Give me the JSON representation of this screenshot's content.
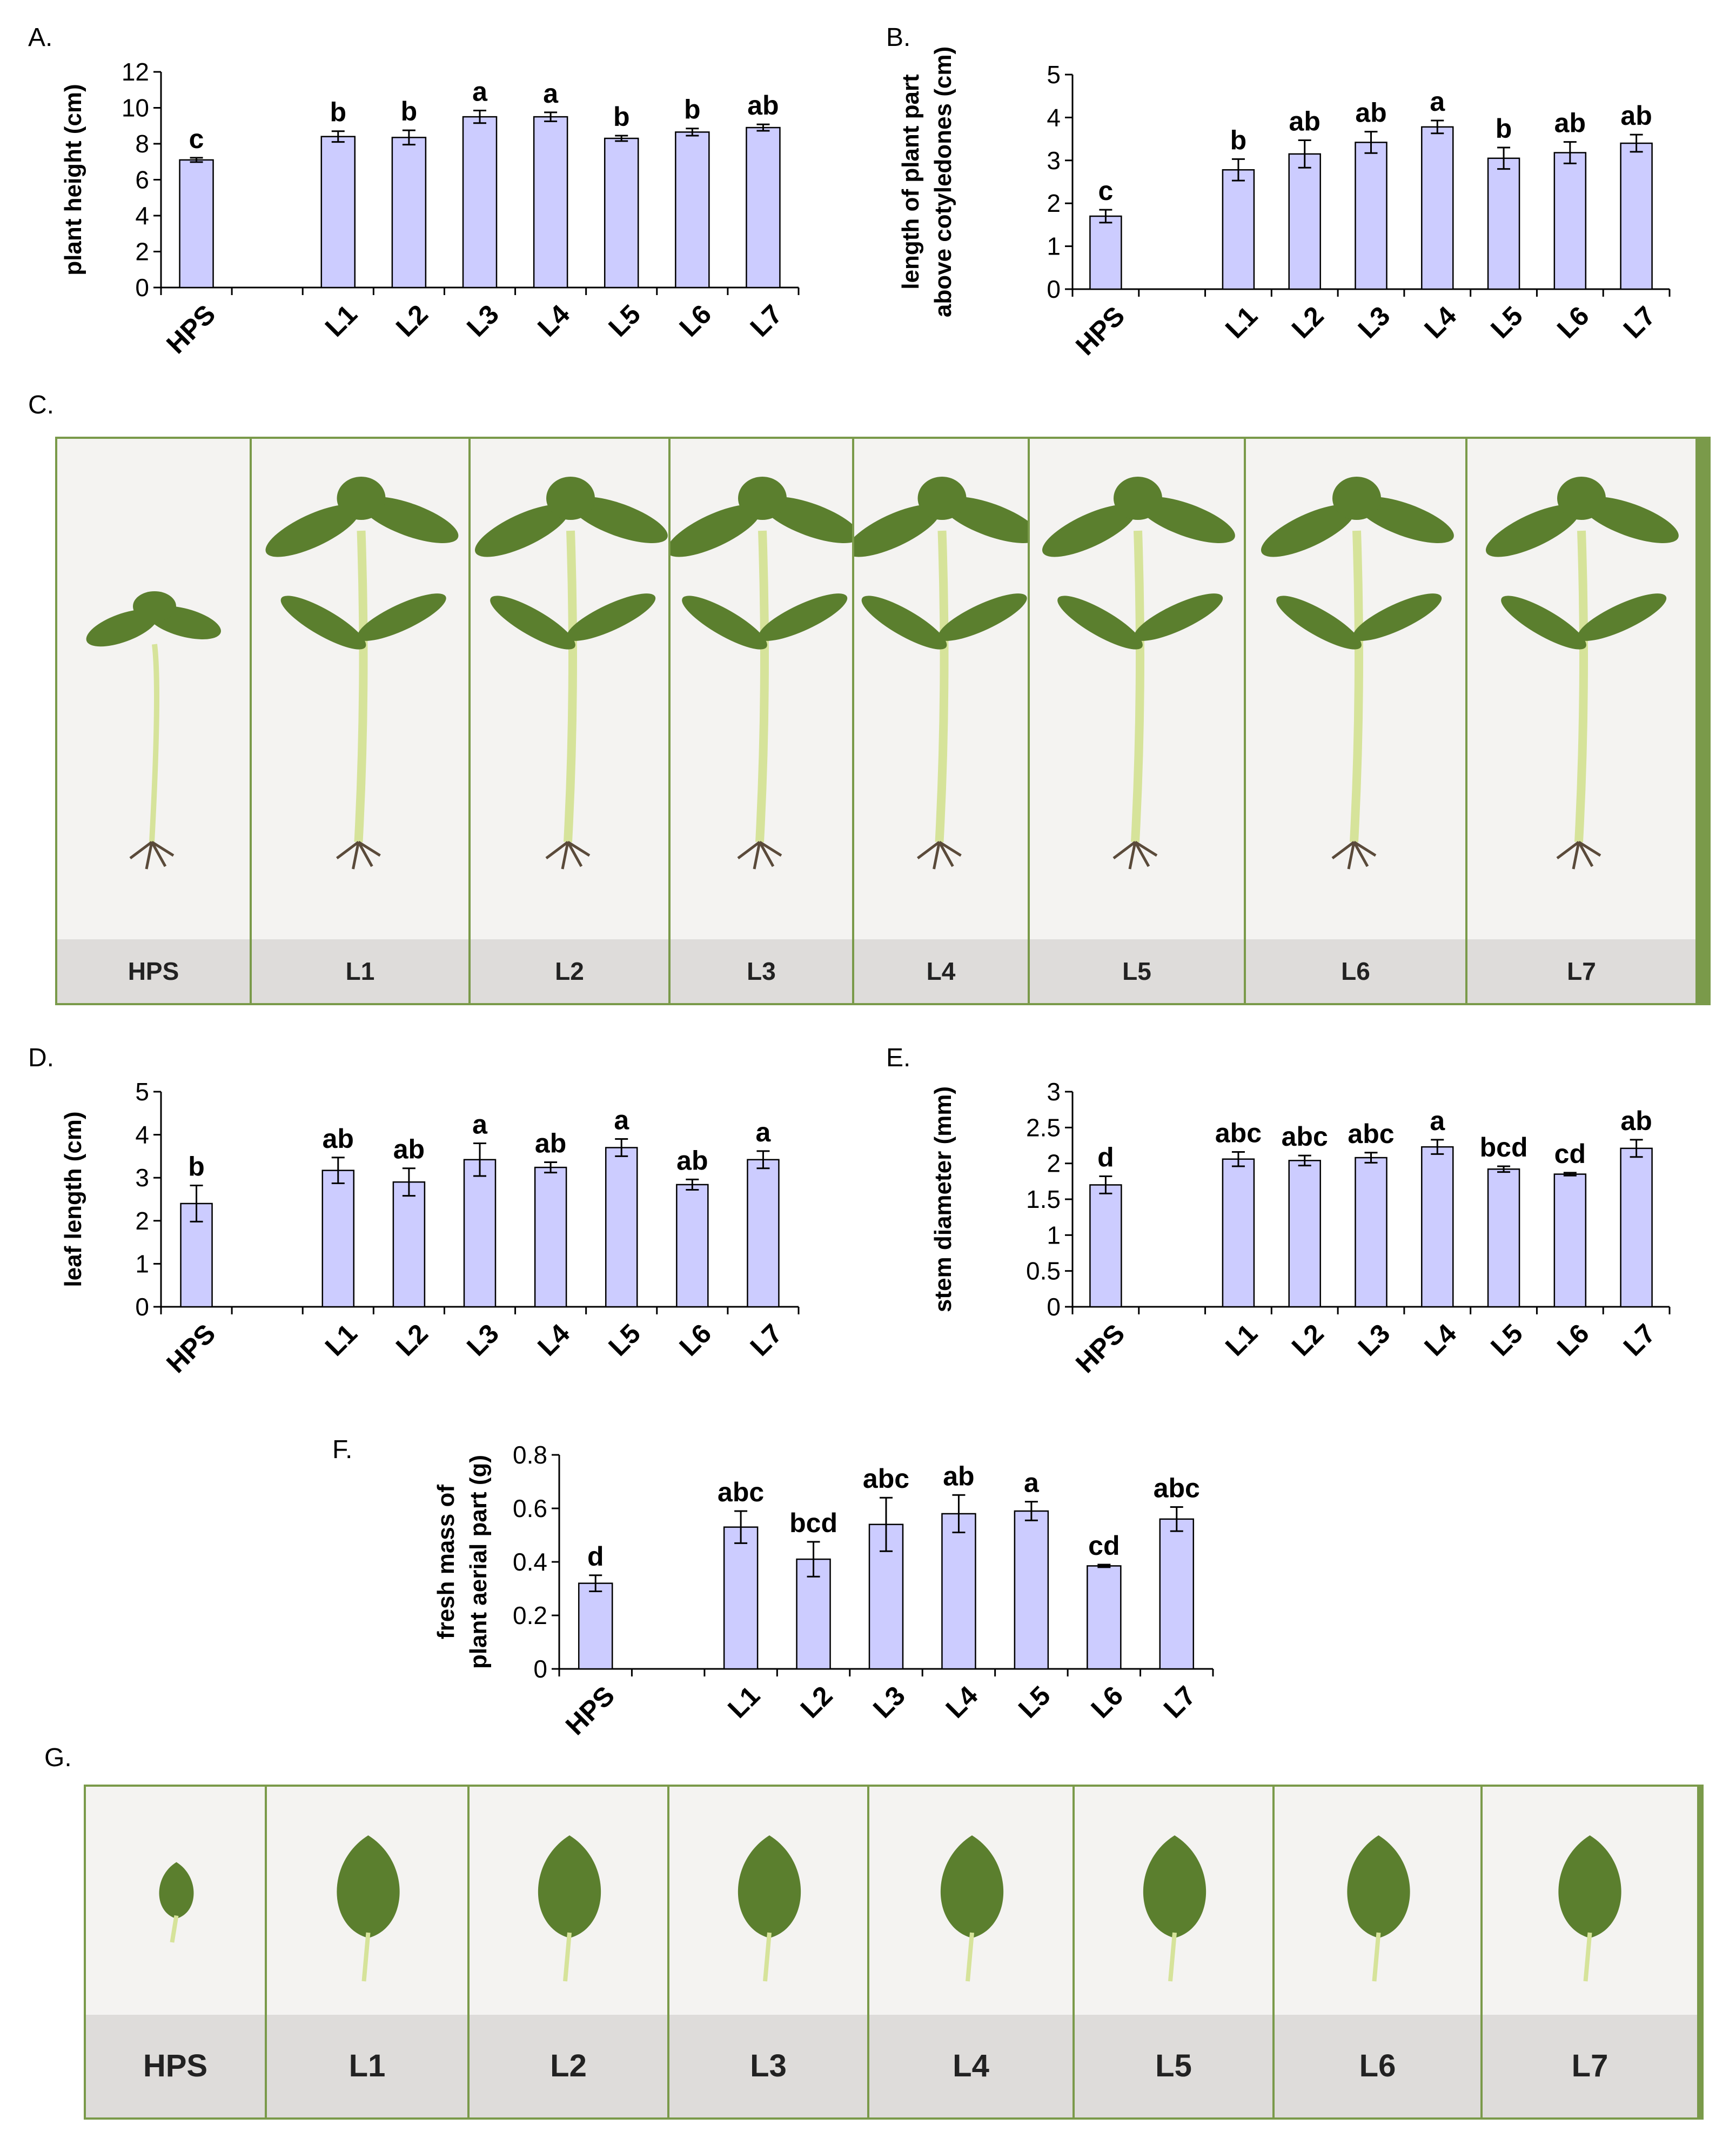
{
  "panels": {
    "A": "A.",
    "B": "B.",
    "C": "C.",
    "D": "D.",
    "E": "E.",
    "F": "F.",
    "G": "G."
  },
  "colors": {
    "bar_fill": "#ccccff",
    "bar_stroke": "#000000",
    "photo_border": "#7a9a4a",
    "plant_stem": "#d6e39a",
    "plant_leaf": "#5b7f2e"
  },
  "chart_data": [
    {
      "id": "A",
      "type": "bar",
      "categories": [
        "HPS",
        "",
        "L1",
        "L2",
        "L3",
        "L4",
        "L5",
        "L6",
        "L7"
      ],
      "values": [
        7.1,
        null,
        8.4,
        8.35,
        9.5,
        9.5,
        8.3,
        8.65,
        8.9
      ],
      "errors": [
        0.12,
        null,
        0.3,
        0.4,
        0.35,
        0.25,
        0.15,
        0.2,
        0.18
      ],
      "significance": [
        "c",
        "",
        "b",
        "b",
        "a",
        "a",
        "b",
        "b",
        "ab"
      ],
      "ylabel": "plant height (cm)",
      "ylim": [
        0,
        12
      ],
      "yticks": [
        0,
        2,
        4,
        6,
        8,
        10,
        12
      ]
    },
    {
      "id": "B",
      "type": "bar",
      "categories": [
        "HPS",
        "",
        "L1",
        "L2",
        "L3",
        "L4",
        "L5",
        "L6",
        "L7"
      ],
      "values": [
        1.7,
        null,
        2.78,
        3.15,
        3.42,
        3.78,
        3.05,
        3.18,
        3.4
      ],
      "errors": [
        0.15,
        null,
        0.25,
        0.32,
        0.25,
        0.15,
        0.25,
        0.25,
        0.2
      ],
      "significance": [
        "c",
        "",
        "b",
        "ab",
        "ab",
        "a",
        "b",
        "ab",
        "ab"
      ],
      "ylabel_lines": [
        "length of plant part",
        "above cotyledones (cm)"
      ],
      "ylim": [
        0,
        5
      ],
      "yticks": [
        0,
        1,
        2,
        3,
        4,
        5
      ]
    },
    {
      "id": "D",
      "type": "bar",
      "categories": [
        "HPS",
        "",
        "L1",
        "L2",
        "L3",
        "L4",
        "L5",
        "L6",
        "L7"
      ],
      "values": [
        2.4,
        null,
        3.17,
        2.9,
        3.42,
        3.24,
        3.7,
        2.84,
        3.42
      ],
      "errors": [
        0.42,
        null,
        0.3,
        0.32,
        0.38,
        0.12,
        0.2,
        0.12,
        0.2
      ],
      "significance": [
        "b",
        "",
        "ab",
        "ab",
        "a",
        "ab",
        "a",
        "ab",
        "a"
      ],
      "ylabel": "leaf length (cm)",
      "ylim": [
        0,
        5
      ],
      "yticks": [
        0,
        1,
        2,
        3,
        4,
        5
      ]
    },
    {
      "id": "E",
      "type": "bar",
      "categories": [
        "HPS",
        "",
        "L1",
        "L2",
        "L3",
        "L4",
        "L5",
        "L6",
        "L7"
      ],
      "values": [
        1.7,
        null,
        2.06,
        2.04,
        2.08,
        2.23,
        1.92,
        1.85,
        2.21
      ],
      "errors": [
        0.12,
        null,
        0.1,
        0.07,
        0.07,
        0.1,
        0.04,
        0.02,
        0.12
      ],
      "significance": [
        "d",
        "",
        "abc",
        "abc",
        "abc",
        "a",
        "bcd",
        "cd",
        "ab"
      ],
      "ylabel": "stem diameter (mm)",
      "ylim": [
        0,
        3
      ],
      "yticks": [
        0,
        0.5,
        1,
        1.5,
        2,
        2.5,
        3
      ]
    },
    {
      "id": "F",
      "type": "bar",
      "categories": [
        "HPS",
        "",
        "L1",
        "L2",
        "L3",
        "L4",
        "L5",
        "L6",
        "L7"
      ],
      "values": [
        0.32,
        null,
        0.53,
        0.41,
        0.54,
        0.58,
        0.59,
        0.385,
        0.56
      ],
      "errors": [
        0.03,
        null,
        0.06,
        0.065,
        0.1,
        0.07,
        0.035,
        0.005,
        0.045
      ],
      "significance": [
        "d",
        "",
        "abc",
        "bcd",
        "abc",
        "ab",
        "a",
        "cd",
        "abc"
      ],
      "ylabel_lines": [
        "fresh mass of",
        "plant aerial part (g)"
      ],
      "ylim": [
        0,
        0.8
      ],
      "yticks": [
        0,
        0.2,
        0.4,
        0.6,
        0.8
      ]
    }
  ],
  "photo_C": {
    "labels": [
      "HPS",
      "L1",
      "L2",
      "L3",
      "L4",
      "L5",
      "L6",
      "L7"
    ]
  },
  "photo_G": {
    "labels": [
      "HPS",
      "L1",
      "L2",
      "L3",
      "L4",
      "L5",
      "L6",
      "L7"
    ]
  }
}
